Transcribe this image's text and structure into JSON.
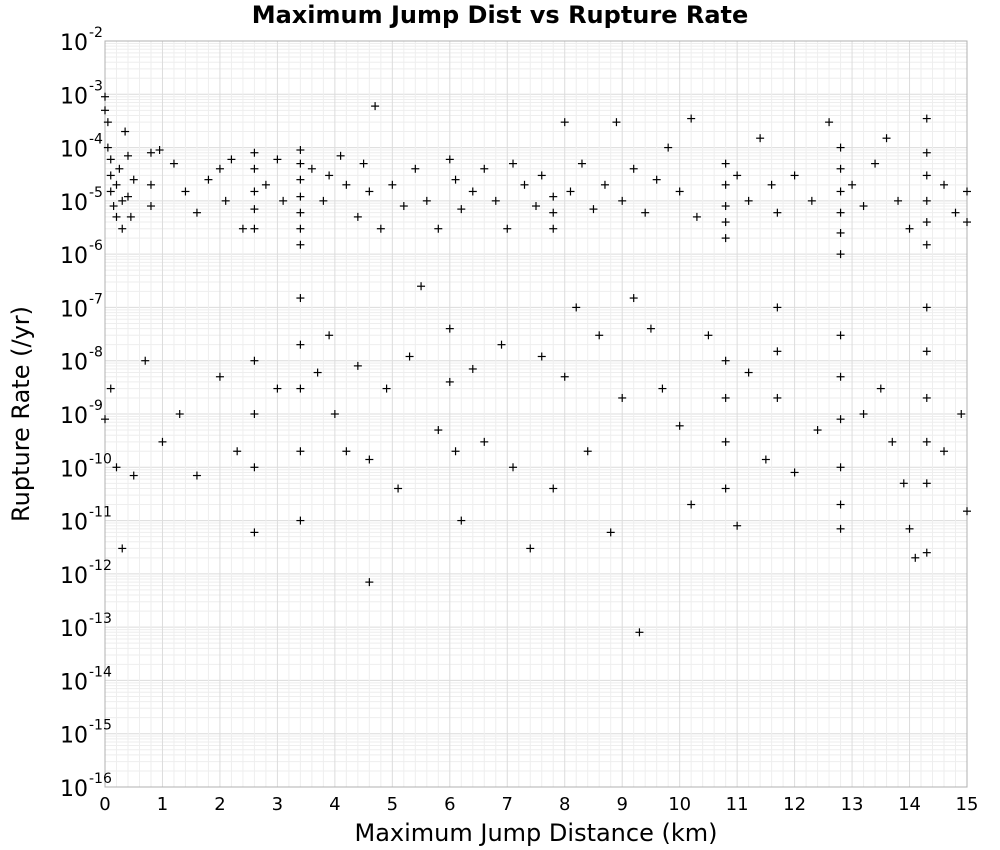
{
  "chart_data": {
    "type": "scatter",
    "title": "Maximum Jump Dist vs Rupture Rate",
    "xlabel": "Maximum Jump Distance (km)",
    "ylabel": "Rupture Rate (/yr)",
    "xlim": [
      0,
      15
    ],
    "ylim": [
      1e-16,
      0.01
    ],
    "yscale": "log",
    "grid": true,
    "legend": "none",
    "marker": "plus",
    "x_ticks": [
      "0",
      "1",
      "2",
      "3",
      "4",
      "5",
      "6",
      "7",
      "8",
      "9",
      "10",
      "11",
      "12",
      "13",
      "14",
      "15"
    ],
    "y_ticks": [
      {
        "base": "10",
        "exp": "-2"
      },
      {
        "base": "10",
        "exp": "-3"
      },
      {
        "base": "10",
        "exp": "-4"
      },
      {
        "base": "10",
        "exp": "-5"
      },
      {
        "base": "10",
        "exp": "-6"
      },
      {
        "base": "10",
        "exp": "-7"
      },
      {
        "base": "10",
        "exp": "-8"
      },
      {
        "base": "10",
        "exp": "-9"
      },
      {
        "base": "10",
        "exp": "-10"
      },
      {
        "base": "10",
        "exp": "-11"
      },
      {
        "base": "10",
        "exp": "-12"
      },
      {
        "base": "10",
        "exp": "-13"
      },
      {
        "base": "10",
        "exp": "-14"
      },
      {
        "base": "10",
        "exp": "-15"
      },
      {
        "base": "10",
        "exp": "-16"
      }
    ],
    "series": [
      {
        "points": [
          [
            0.0,
            0.0009
          ],
          [
            0.0,
            0.0005
          ],
          [
            0.05,
            0.0003
          ],
          [
            0.05,
            0.0001
          ],
          [
            0.1,
            6e-05
          ],
          [
            0.1,
            3e-05
          ],
          [
            0.1,
            1.5e-05
          ],
          [
            0.15,
            8e-06
          ],
          [
            0.2,
            5e-06
          ],
          [
            0.2,
            2e-05
          ],
          [
            0.25,
            4e-05
          ],
          [
            0.3,
            1e-05
          ],
          [
            0.3,
            3e-06
          ],
          [
            0.35,
            0.0002
          ],
          [
            0.4,
            7e-05
          ],
          [
            0.4,
            1.2e-05
          ],
          [
            0.45,
            5e-06
          ],
          [
            0.5,
            2.5e-05
          ],
          [
            0.8,
            8e-05
          ],
          [
            0.8,
            2e-05
          ],
          [
            0.8,
            8e-06
          ],
          [
            0.95,
            9e-05
          ],
          [
            1.2,
            5e-05
          ],
          [
            1.4,
            1.5e-05
          ],
          [
            1.6,
            6e-06
          ],
          [
            1.8,
            2.5e-05
          ],
          [
            2.0,
            4e-05
          ],
          [
            2.1,
            1e-05
          ],
          [
            2.2,
            6e-05
          ],
          [
            2.4,
            3e-06
          ],
          [
            2.6,
            8e-05
          ],
          [
            2.6,
            4e-05
          ],
          [
            2.6,
            1.5e-05
          ],
          [
            2.6,
            7e-06
          ],
          [
            2.6,
            3e-06
          ],
          [
            2.8,
            2e-05
          ],
          [
            3.0,
            6e-05
          ],
          [
            3.1,
            1e-05
          ],
          [
            3.4,
            9e-05
          ],
          [
            3.4,
            5e-05
          ],
          [
            3.4,
            2.5e-05
          ],
          [
            3.4,
            1.2e-05
          ],
          [
            3.4,
            6e-06
          ],
          [
            3.4,
            3e-06
          ],
          [
            3.4,
            1.5e-06
          ],
          [
            3.6,
            4e-05
          ],
          [
            3.8,
            1e-05
          ],
          [
            3.9,
            3e-05
          ],
          [
            4.1,
            7e-05
          ],
          [
            4.2,
            2e-05
          ],
          [
            4.4,
            5e-06
          ],
          [
            4.5,
            5e-05
          ],
          [
            4.6,
            1.5e-05
          ],
          [
            4.7,
            0.0006
          ],
          [
            4.8,
            3e-06
          ],
          [
            5.0,
            2e-05
          ],
          [
            5.2,
            8e-06
          ],
          [
            5.4,
            4e-05
          ],
          [
            5.6,
            1e-05
          ],
          [
            5.8,
            3e-06
          ],
          [
            6.0,
            6e-05
          ],
          [
            6.1,
            2.5e-05
          ],
          [
            6.2,
            7e-06
          ],
          [
            6.4,
            1.5e-05
          ],
          [
            6.6,
            4e-05
          ],
          [
            6.8,
            1e-05
          ],
          [
            7.0,
            3e-06
          ],
          [
            7.1,
            5e-05
          ],
          [
            7.3,
            2e-05
          ],
          [
            7.5,
            8e-06
          ],
          [
            7.6,
            3e-05
          ],
          [
            7.8,
            1.2e-05
          ],
          [
            7.8,
            6e-06
          ],
          [
            7.8,
            3e-06
          ],
          [
            8.0,
            0.0003
          ],
          [
            8.1,
            1.5e-05
          ],
          [
            8.3,
            5e-05
          ],
          [
            8.5,
            7e-06
          ],
          [
            8.7,
            2e-05
          ],
          [
            8.9,
            0.0003
          ],
          [
            9.0,
            1e-05
          ],
          [
            9.2,
            4e-05
          ],
          [
            9.4,
            6e-06
          ],
          [
            9.6,
            2.5e-05
          ],
          [
            9.8,
            0.0001
          ],
          [
            10.0,
            1.5e-05
          ],
          [
            10.2,
            0.00035
          ],
          [
            10.3,
            5e-06
          ],
          [
            10.8,
            5e-05
          ],
          [
            10.8,
            2e-05
          ],
          [
            10.8,
            8e-06
          ],
          [
            10.8,
            4e-06
          ],
          [
            10.8,
            2e-06
          ],
          [
            11.0,
            3e-05
          ],
          [
            11.2,
            1e-05
          ],
          [
            11.4,
            0.00015
          ],
          [
            11.6,
            2e-05
          ],
          [
            11.7,
            6e-06
          ],
          [
            12.0,
            3e-05
          ],
          [
            12.3,
            1e-05
          ],
          [
            12.6,
            0.0003
          ],
          [
            12.8,
            0.0001
          ],
          [
            12.8,
            4e-05
          ],
          [
            12.8,
            1.5e-05
          ],
          [
            12.8,
            6e-06
          ],
          [
            12.8,
            2.5e-06
          ],
          [
            12.8,
            1e-06
          ],
          [
            13.0,
            2e-05
          ],
          [
            13.2,
            8e-06
          ],
          [
            13.4,
            5e-05
          ],
          [
            13.6,
            0.00015
          ],
          [
            13.8,
            1e-05
          ],
          [
            14.0,
            3e-06
          ],
          [
            14.3,
            0.00035
          ],
          [
            14.3,
            8e-05
          ],
          [
            14.3,
            3e-05
          ],
          [
            14.3,
            1e-05
          ],
          [
            14.3,
            4e-06
          ],
          [
            14.3,
            1.5e-06
          ],
          [
            14.6,
            2e-05
          ],
          [
            14.8,
            6e-06
          ],
          [
            15.0,
            1.5e-05
          ],
          [
            15.0,
            4e-06
          ],
          [
            0.0,
            8e-10
          ],
          [
            0.1,
            3e-09
          ],
          [
            0.2,
            1e-10
          ],
          [
            0.3,
            3e-12
          ],
          [
            0.5,
            7e-11
          ],
          [
            0.7,
            1e-08
          ],
          [
            1.0,
            3e-10
          ],
          [
            1.3,
            1e-09
          ],
          [
            1.6,
            7e-11
          ],
          [
            2.0,
            5e-09
          ],
          [
            2.3,
            2e-10
          ],
          [
            2.6,
            1e-08
          ],
          [
            2.6,
            1e-09
          ],
          [
            2.6,
            1e-10
          ],
          [
            2.6,
            6e-12
          ],
          [
            3.0,
            3e-09
          ],
          [
            3.4,
            1.5e-07
          ],
          [
            3.4,
            2e-08
          ],
          [
            3.4,
            3e-09
          ],
          [
            3.4,
            2e-10
          ],
          [
            3.4,
            1e-11
          ],
          [
            3.7,
            6e-09
          ],
          [
            3.9,
            3e-08
          ],
          [
            4.0,
            1e-09
          ],
          [
            4.2,
            2e-10
          ],
          [
            4.4,
            8e-09
          ],
          [
            4.6,
            1.4e-10
          ],
          [
            4.6,
            7e-13
          ],
          [
            4.9,
            3e-09
          ],
          [
            5.1,
            4e-11
          ],
          [
            5.3,
            1.2e-08
          ],
          [
            5.5,
            2.5e-07
          ],
          [
            5.8,
            5e-10
          ],
          [
            6.0,
            4e-08
          ],
          [
            6.0,
            4e-09
          ],
          [
            6.1,
            2e-10
          ],
          [
            6.2,
            1e-11
          ],
          [
            6.4,
            7e-09
          ],
          [
            6.6,
            3e-10
          ],
          [
            6.9,
            2e-08
          ],
          [
            7.1,
            1e-10
          ],
          [
            7.4,
            3e-12
          ],
          [
            7.6,
            1.2e-08
          ],
          [
            7.8,
            4e-11
          ],
          [
            8.0,
            5e-09
          ],
          [
            8.2,
            1e-07
          ],
          [
            8.4,
            2e-10
          ],
          [
            8.6,
            3e-08
          ],
          [
            8.8,
            6e-12
          ],
          [
            9.0,
            2e-09
          ],
          [
            9.2,
            1.5e-07
          ],
          [
            9.3,
            8e-14
          ],
          [
            9.5,
            4e-08
          ],
          [
            9.7,
            3e-09
          ],
          [
            10.0,
            6e-10
          ],
          [
            10.2,
            2e-11
          ],
          [
            10.5,
            3e-08
          ],
          [
            10.8,
            1e-08
          ],
          [
            10.8,
            2e-09
          ],
          [
            10.8,
            3e-10
          ],
          [
            10.8,
            4e-11
          ],
          [
            11.0,
            8e-12
          ],
          [
            11.2,
            6e-09
          ],
          [
            11.5,
            1.4e-10
          ],
          [
            11.7,
            1e-07
          ],
          [
            11.7,
            1.5e-08
          ],
          [
            11.7,
            2e-09
          ],
          [
            12.0,
            8e-11
          ],
          [
            12.4,
            5e-10
          ],
          [
            12.8,
            3e-08
          ],
          [
            12.8,
            5e-09
          ],
          [
            12.8,
            8e-10
          ],
          [
            12.8,
            1e-10
          ],
          [
            12.8,
            2e-11
          ],
          [
            12.8,
            7e-12
          ],
          [
            13.2,
            1e-09
          ],
          [
            13.5,
            3e-09
          ],
          [
            13.7,
            3e-10
          ],
          [
            13.9,
            5e-11
          ],
          [
            14.0,
            7e-12
          ],
          [
            14.1,
            2e-12
          ],
          [
            14.3,
            1e-07
          ],
          [
            14.3,
            1.5e-08
          ],
          [
            14.3,
            2e-09
          ],
          [
            14.3,
            3e-10
          ],
          [
            14.3,
            5e-11
          ],
          [
            14.3,
            2.5e-12
          ],
          [
            14.6,
            2e-10
          ],
          [
            14.9,
            1e-09
          ],
          [
            15.0,
            1.5e-11
          ]
        ]
      }
    ]
  }
}
